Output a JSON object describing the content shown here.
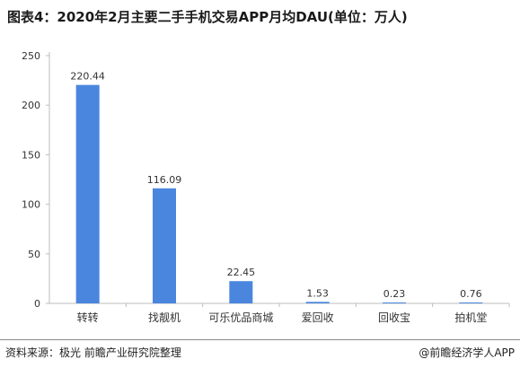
{
  "title": "图表4：2020年2月主要二手手机交易APP月均DAU(单位：万人)",
  "source": "资料来源：极光 前瞻产业研究院整理",
  "brand": "@前瞻经济学人APP",
  "colors": {
    "bar": "#4a86de",
    "axis": "#bdbdbd",
    "text": "#333333"
  },
  "chart_data": {
    "type": "bar",
    "categories": [
      "转转",
      "找靓机",
      "可乐优品商城",
      "爱回收",
      "回收宝",
      "拍机堂"
    ],
    "values": [
      220.44,
      116.09,
      22.45,
      1.53,
      0.23,
      0.76
    ],
    "data_labels": [
      "220.44",
      "116.09",
      "22.45",
      "1.53",
      "0.23",
      "0.76"
    ],
    "y_ticks": [
      0,
      50,
      100,
      150,
      200,
      250
    ],
    "ylim": [
      0,
      250
    ],
    "grid": false,
    "legend": "none"
  }
}
